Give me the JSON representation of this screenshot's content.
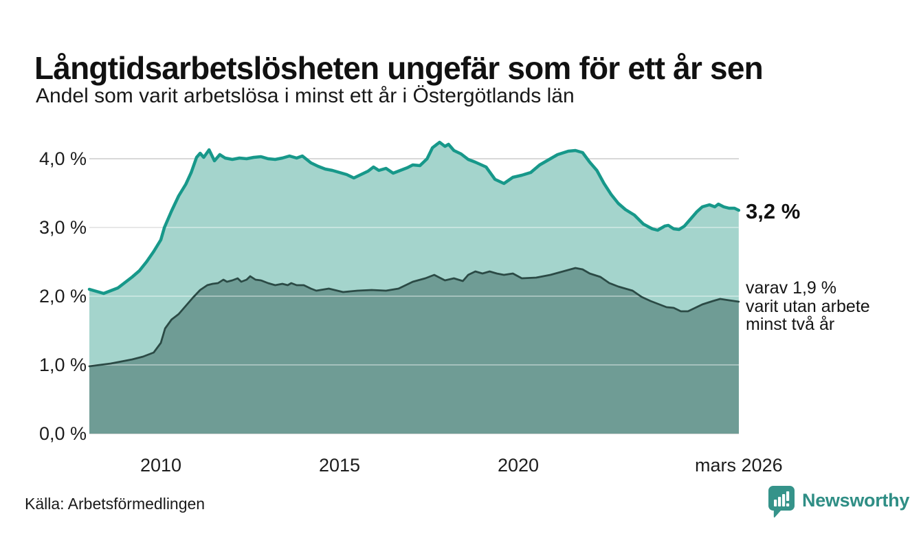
{
  "header": {
    "title": "Långtidsarbetslösheten ungefär som för ett år sen",
    "subtitle": "Andel som varit arbetslösa i minst ett år i Östergötlands län"
  },
  "footer": {
    "source": "Källa: Arbetsförmedlingen",
    "brand": "Newsworthy",
    "brand_color": "#2f8e85"
  },
  "chart_data": {
    "type": "area",
    "title": "Långtidsarbetslösheten ungefär som för ett år sen",
    "subtitle": "Andel som varit arbetslösa i minst ett år i Östergötlands län",
    "unit": "%",
    "grid": "horizontal",
    "legend_position": "none",
    "x_axis": {
      "range_years": [
        2008.0,
        2026.17
      ],
      "ticks": [
        {
          "label": "2010",
          "year": 2010
        },
        {
          "label": "2015",
          "year": 2015
        },
        {
          "label": "2020",
          "year": 2020
        },
        {
          "label": "mars 2026",
          "year": 2026.17
        }
      ]
    },
    "y_axis": {
      "range": [
        0,
        4.4
      ],
      "ticks": [
        {
          "label": "4,0 %",
          "value": 4.0
        },
        {
          "label": "3,0 %",
          "value": 3.0
        },
        {
          "label": "2,0 %",
          "value": 2.0
        },
        {
          "label": "1,0 %",
          "value": 1.0
        },
        {
          "label": "0,0 %",
          "value": 0.0
        }
      ]
    },
    "annotations": {
      "value_label": "3,2 %",
      "detail_label": "varav 1,9 %\nvarit utan arbete\nminst två år"
    },
    "colors": {
      "line_1yr": "#17988a",
      "fill_1yr": "#a4d4cc",
      "line_2yr": "#2b4a45",
      "fill_2yr": "#6f9c95",
      "gridline": "#d8d8d8"
    },
    "series": [
      {
        "name": "Andel arbetslösa minst ett år",
        "latest_value": 3.2,
        "points": [
          [
            2008.0,
            2.1
          ],
          [
            2008.2,
            2.07
          ],
          [
            2008.4,
            2.04
          ],
          [
            2008.6,
            2.08
          ],
          [
            2008.8,
            2.12
          ],
          [
            2009.0,
            2.2
          ],
          [
            2009.2,
            2.28
          ],
          [
            2009.4,
            2.37
          ],
          [
            2009.6,
            2.5
          ],
          [
            2009.8,
            2.65
          ],
          [
            2010.0,
            2.82
          ],
          [
            2010.1,
            3.0
          ],
          [
            2010.3,
            3.24
          ],
          [
            2010.5,
            3.46
          ],
          [
            2010.7,
            3.63
          ],
          [
            2010.85,
            3.8
          ],
          [
            2011.0,
            4.02
          ],
          [
            2011.1,
            4.08
          ],
          [
            2011.2,
            4.02
          ],
          [
            2011.35,
            4.13
          ],
          [
            2011.5,
            3.97
          ],
          [
            2011.65,
            4.06
          ],
          [
            2011.8,
            4.01
          ],
          [
            2012.0,
            3.99
          ],
          [
            2012.2,
            4.01
          ],
          [
            2012.4,
            4.0
          ],
          [
            2012.6,
            4.02
          ],
          [
            2012.8,
            4.03
          ],
          [
            2013.0,
            4.0
          ],
          [
            2013.2,
            3.99
          ],
          [
            2013.4,
            4.01
          ],
          [
            2013.6,
            4.04
          ],
          [
            2013.8,
            4.01
          ],
          [
            2013.96,
            4.04
          ],
          [
            2014.2,
            3.94
          ],
          [
            2014.4,
            3.89
          ],
          [
            2014.6,
            3.85
          ],
          [
            2014.8,
            3.83
          ],
          [
            2015.0,
            3.8
          ],
          [
            2015.2,
            3.77
          ],
          [
            2015.4,
            3.72
          ],
          [
            2015.6,
            3.77
          ],
          [
            2015.8,
            3.82
          ],
          [
            2015.95,
            3.88
          ],
          [
            2016.1,
            3.83
          ],
          [
            2016.3,
            3.86
          ],
          [
            2016.5,
            3.79
          ],
          [
            2016.7,
            3.83
          ],
          [
            2016.9,
            3.87
          ],
          [
            2017.05,
            3.91
          ],
          [
            2017.25,
            3.9
          ],
          [
            2017.45,
            4.0
          ],
          [
            2017.6,
            4.16
          ],
          [
            2017.8,
            4.24
          ],
          [
            2017.95,
            4.18
          ],
          [
            2018.05,
            4.21
          ],
          [
            2018.2,
            4.12
          ],
          [
            2018.4,
            4.07
          ],
          [
            2018.6,
            3.99
          ],
          [
            2018.8,
            3.95
          ],
          [
            2019.1,
            3.88
          ],
          [
            2019.35,
            3.7
          ],
          [
            2019.6,
            3.64
          ],
          [
            2019.85,
            3.73
          ],
          [
            2020.1,
            3.76
          ],
          [
            2020.35,
            3.8
          ],
          [
            2020.6,
            3.91
          ],
          [
            2020.9,
            4.0
          ],
          [
            2021.1,
            4.06
          ],
          [
            2021.4,
            4.11
          ],
          [
            2021.6,
            4.12
          ],
          [
            2021.8,
            4.09
          ],
          [
            2022.0,
            3.95
          ],
          [
            2022.2,
            3.83
          ],
          [
            2022.4,
            3.64
          ],
          [
            2022.6,
            3.48
          ],
          [
            2022.8,
            3.35
          ],
          [
            2023.0,
            3.26
          ],
          [
            2023.25,
            3.18
          ],
          [
            2023.5,
            3.05
          ],
          [
            2023.75,
            2.98
          ],
          [
            2023.9,
            2.96
          ],
          [
            2024.1,
            3.02
          ],
          [
            2024.2,
            3.03
          ],
          [
            2024.35,
            2.98
          ],
          [
            2024.5,
            2.97
          ],
          [
            2024.65,
            3.02
          ],
          [
            2024.8,
            3.11
          ],
          [
            2025.0,
            3.23
          ],
          [
            2025.15,
            3.3
          ],
          [
            2025.35,
            3.33
          ],
          [
            2025.5,
            3.3
          ],
          [
            2025.6,
            3.34
          ],
          [
            2025.75,
            3.3
          ],
          [
            2025.9,
            3.28
          ],
          [
            2026.05,
            3.28
          ],
          [
            2026.17,
            3.25
          ]
        ]
      },
      {
        "name": "Andel arbetslösa minst två år",
        "latest_value": 1.9,
        "points": [
          [
            2008.0,
            0.98
          ],
          [
            2008.3,
            1.0
          ],
          [
            2008.6,
            1.02
          ],
          [
            2008.9,
            1.05
          ],
          [
            2009.2,
            1.08
          ],
          [
            2009.5,
            1.12
          ],
          [
            2009.8,
            1.18
          ],
          [
            2010.0,
            1.32
          ],
          [
            2010.12,
            1.53
          ],
          [
            2010.3,
            1.66
          ],
          [
            2010.5,
            1.74
          ],
          [
            2010.7,
            1.86
          ],
          [
            2010.9,
            1.98
          ],
          [
            2011.1,
            2.09
          ],
          [
            2011.3,
            2.16
          ],
          [
            2011.45,
            2.18
          ],
          [
            2011.6,
            2.19
          ],
          [
            2011.75,
            2.24
          ],
          [
            2011.85,
            2.21
          ],
          [
            2012.0,
            2.23
          ],
          [
            2012.15,
            2.26
          ],
          [
            2012.25,
            2.21
          ],
          [
            2012.4,
            2.24
          ],
          [
            2012.5,
            2.29
          ],
          [
            2012.65,
            2.24
          ],
          [
            2012.8,
            2.23
          ],
          [
            2013.0,
            2.19
          ],
          [
            2013.2,
            2.16
          ],
          [
            2013.4,
            2.18
          ],
          [
            2013.55,
            2.16
          ],
          [
            2013.65,
            2.19
          ],
          [
            2013.8,
            2.16
          ],
          [
            2014.0,
            2.16
          ],
          [
            2014.2,
            2.11
          ],
          [
            2014.35,
            2.08
          ],
          [
            2014.7,
            2.11
          ],
          [
            2015.1,
            2.06
          ],
          [
            2015.5,
            2.08
          ],
          [
            2015.9,
            2.09
          ],
          [
            2016.3,
            2.08
          ],
          [
            2016.65,
            2.11
          ],
          [
            2017.05,
            2.21
          ],
          [
            2017.4,
            2.26
          ],
          [
            2017.65,
            2.31
          ],
          [
            2017.95,
            2.23
          ],
          [
            2018.2,
            2.26
          ],
          [
            2018.45,
            2.22
          ],
          [
            2018.6,
            2.31
          ],
          [
            2018.8,
            2.36
          ],
          [
            2019.0,
            2.33
          ],
          [
            2019.2,
            2.36
          ],
          [
            2019.4,
            2.33
          ],
          [
            2019.6,
            2.31
          ],
          [
            2019.85,
            2.33
          ],
          [
            2020.1,
            2.26
          ],
          [
            2020.5,
            2.27
          ],
          [
            2020.9,
            2.31
          ],
          [
            2021.25,
            2.36
          ],
          [
            2021.6,
            2.41
          ],
          [
            2021.8,
            2.39
          ],
          [
            2022.0,
            2.33
          ],
          [
            2022.3,
            2.28
          ],
          [
            2022.55,
            2.19
          ],
          [
            2022.8,
            2.14
          ],
          [
            2023.0,
            2.11
          ],
          [
            2023.2,
            2.08
          ],
          [
            2023.45,
            1.99
          ],
          [
            2023.7,
            1.93
          ],
          [
            2023.95,
            1.88
          ],
          [
            2024.15,
            1.84
          ],
          [
            2024.35,
            1.83
          ],
          [
            2024.55,
            1.78
          ],
          [
            2024.75,
            1.78
          ],
          [
            2024.95,
            1.83
          ],
          [
            2025.15,
            1.88
          ],
          [
            2025.45,
            1.93
          ],
          [
            2025.65,
            1.96
          ],
          [
            2025.9,
            1.94
          ],
          [
            2026.17,
            1.92
          ]
        ]
      }
    ]
  }
}
